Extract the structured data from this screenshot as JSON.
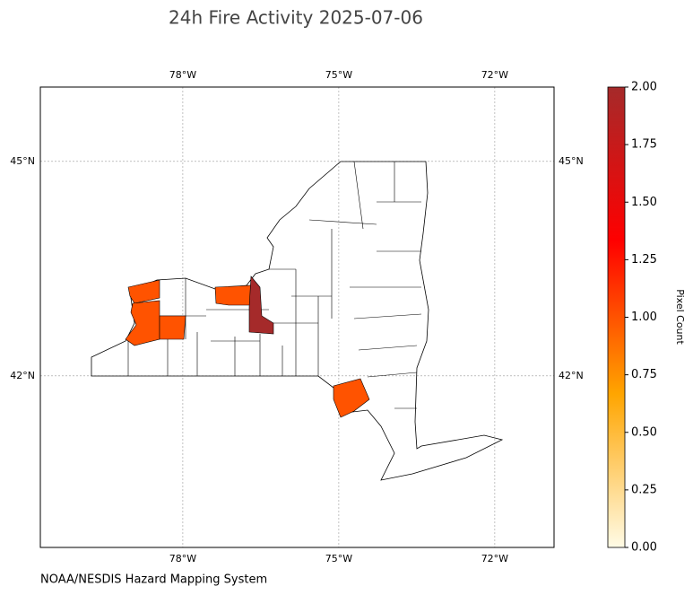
{
  "map_data": {
    "type": "choropleth",
    "title": "24h Fire Activity 2025-07-06",
    "credit": "NOAA/NESDIS Hazard Mapping System",
    "xlim": [
      -80.74,
      -70.86
    ],
    "ylim": [
      39.6,
      46.04
    ],
    "xticks": [
      {
        "value": -78,
        "label": "78°W"
      },
      {
        "value": -75,
        "label": "75°W"
      },
      {
        "value": -72,
        "label": "72°W"
      }
    ],
    "yticks": [
      {
        "value": 42,
        "label": "42°N"
      },
      {
        "value": 45,
        "label": "45°N"
      }
    ],
    "grid": true,
    "regions": {
      "values": [
        1,
        1,
        1,
        1,
        2,
        1
      ]
    },
    "colorbar": {
      "label": "Pixel Count",
      "lim": [
        0,
        2
      ],
      "colormap": [
        "#fffbe6",
        "#ffa500",
        "#ff0000",
        "#a52a2a"
      ],
      "ticks": [
        {
          "value": 0,
          "label": "0.00"
        },
        {
          "value": 0.25,
          "label": "0.25"
        },
        {
          "value": 0.5,
          "label": "0.50"
        },
        {
          "value": 0.75,
          "label": "0.75"
        },
        {
          "value": 1,
          "label": "1.00"
        },
        {
          "value": 1.25,
          "label": "1.25"
        },
        {
          "value": 1.5,
          "label": "1.50"
        },
        {
          "value": 1.75,
          "label": "1.75"
        },
        {
          "value": 2,
          "label": "2.00"
        }
      ]
    }
  }
}
